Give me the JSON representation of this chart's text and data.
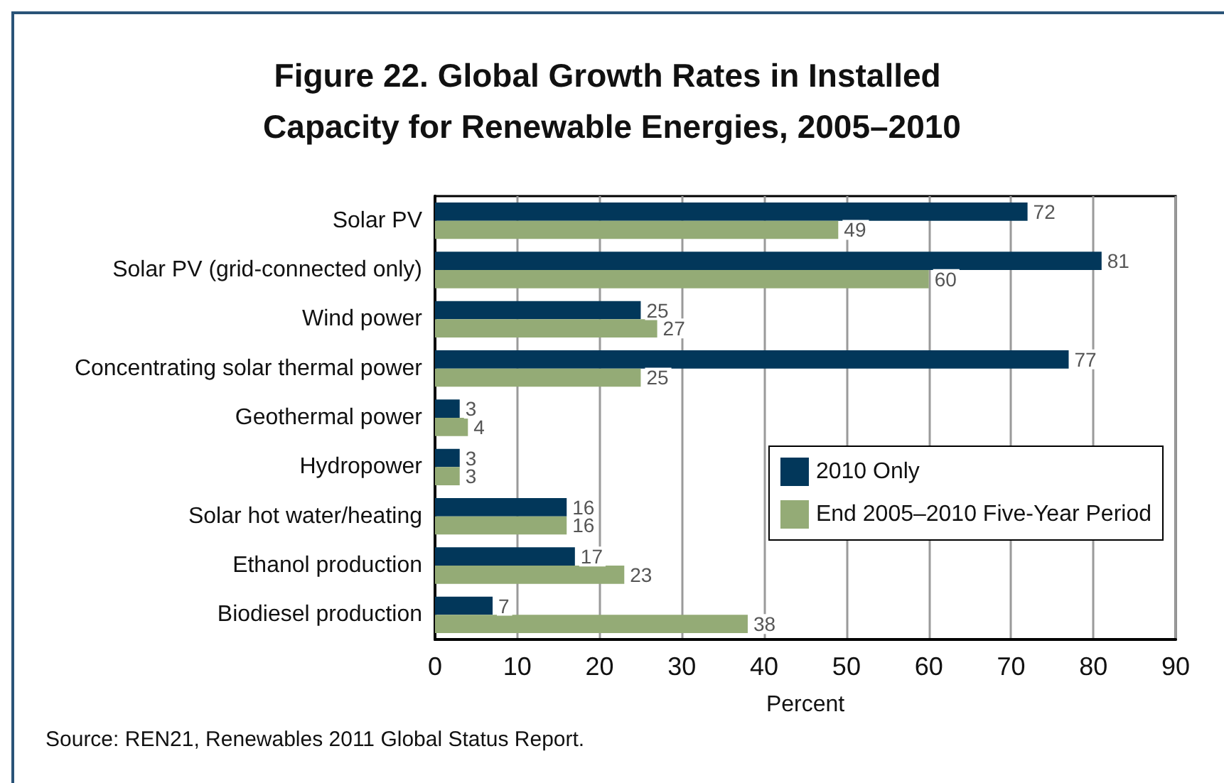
{
  "chart_data": {
    "type": "bar",
    "orientation": "horizontal",
    "title": "Figure 22. Global Growth Rates in Installed Capacity for Renewable Energies, 2005–2010",
    "xlabel": "Percent",
    "categories": [
      "Solar PV",
      "Solar PV (grid-connected only)",
      "Wind power",
      "Concentrating solar thermal power",
      "Geothermal power",
      "Hydropower",
      "Solar hot water/heating",
      "Ethanol production",
      "Biodiesel production"
    ],
    "series": [
      {
        "name": "2010 Only",
        "color": "#02375a",
        "values": [
          72,
          81,
          25,
          77,
          3,
          3,
          16,
          17,
          7
        ]
      },
      {
        "name": "End 2005–2010 Five-Year Period",
        "color": "#94ab76",
        "values": [
          49,
          60,
          27,
          25,
          4,
          3,
          16,
          23,
          38
        ]
      }
    ],
    "xlim": [
      0,
      90
    ],
    "xticks": [
      0,
      10,
      20,
      30,
      40,
      50,
      60,
      70,
      80,
      90
    ],
    "grid": "x",
    "legend": "bottom right",
    "data_labels": true,
    "annotations": [
      "Source: REN21, Renewables 2011 Global Status Report."
    ]
  }
}
